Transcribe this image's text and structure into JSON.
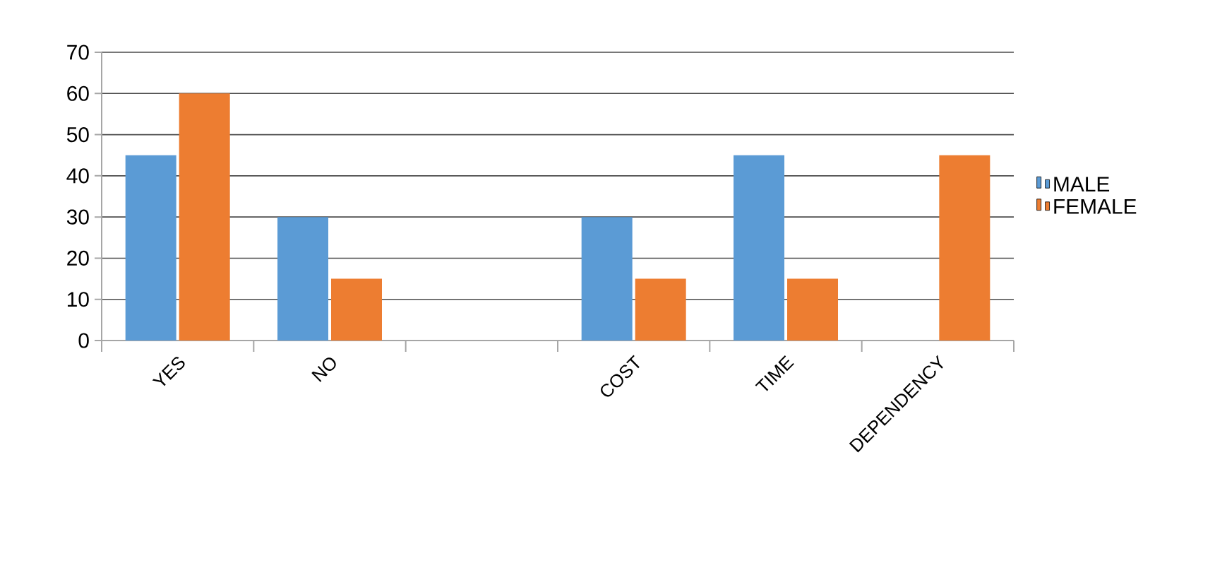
{
  "chart_data": {
    "type": "bar",
    "categories": [
      "YES",
      "NO",
      null,
      "COST",
      "TIME",
      "DEPENDENCY"
    ],
    "series": [
      {
        "name": "MALE",
        "color": "#5b9bd5",
        "values": [
          45,
          30,
          null,
          30,
          45,
          null
        ]
      },
      {
        "name": "FEMALE",
        "color": "#ed7d31",
        "values": [
          60,
          15,
          null,
          15,
          15,
          45
        ]
      }
    ],
    "ylim": [
      0,
      70
    ],
    "yticks": [
      0,
      10,
      20,
      30,
      40,
      50,
      60,
      70
    ],
    "grid": "y",
    "legend": "right"
  }
}
